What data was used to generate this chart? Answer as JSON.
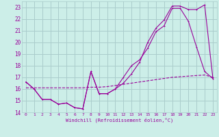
{
  "xlabel": "Windchill (Refroidissement éolien,°C)",
  "bg_color": "#cceee8",
  "grid_color": "#aacccc",
  "line_color": "#990099",
  "xlim": [
    -0.5,
    23.5
  ],
  "ylim": [
    14,
    23.5
  ],
  "yticks": [
    14,
    15,
    16,
    17,
    18,
    19,
    20,
    21,
    22,
    23
  ],
  "xticks": [
    0,
    1,
    2,
    3,
    4,
    5,
    6,
    7,
    8,
    9,
    10,
    11,
    12,
    13,
    14,
    15,
    16,
    17,
    18,
    19,
    20,
    21,
    22,
    23
  ],
  "series1_x": [
    0,
    1,
    2,
    3,
    4,
    5,
    6,
    7,
    8,
    9,
    10,
    11,
    12,
    13,
    14,
    15,
    16,
    17,
    18,
    19,
    20,
    21,
    22,
    23
  ],
  "series1_y": [
    16.6,
    16.0,
    15.1,
    15.1,
    14.7,
    14.8,
    14.4,
    14.3,
    17.5,
    15.6,
    15.6,
    16.0,
    17.0,
    18.0,
    18.5,
    19.5,
    20.9,
    21.4,
    22.9,
    22.9,
    21.8,
    19.6,
    17.5,
    16.9
  ],
  "series2_x": [
    0,
    1,
    2,
    3,
    4,
    5,
    6,
    7,
    8,
    9,
    10,
    11,
    12,
    13,
    14,
    15,
    16,
    17,
    18,
    19,
    20,
    21,
    22,
    23
  ],
  "series2_y": [
    16.6,
    16.0,
    15.1,
    15.1,
    14.7,
    14.8,
    14.4,
    14.3,
    17.5,
    15.6,
    15.6,
    16.0,
    16.5,
    17.3,
    18.3,
    20.0,
    21.2,
    21.9,
    23.1,
    23.1,
    22.8,
    22.8,
    23.2,
    17.0
  ],
  "series3_x": [
    0,
    1,
    2,
    3,
    4,
    5,
    6,
    7,
    8,
    9,
    10,
    11,
    12,
    13,
    14,
    15,
    16,
    17,
    18,
    19,
    20,
    21,
    22,
    23
  ],
  "series3_y": [
    16.1,
    16.1,
    16.1,
    16.1,
    16.1,
    16.1,
    16.1,
    16.1,
    16.15,
    16.15,
    16.2,
    16.3,
    16.4,
    16.5,
    16.6,
    16.7,
    16.8,
    16.9,
    17.0,
    17.05,
    17.1,
    17.15,
    17.2,
    17.0
  ]
}
